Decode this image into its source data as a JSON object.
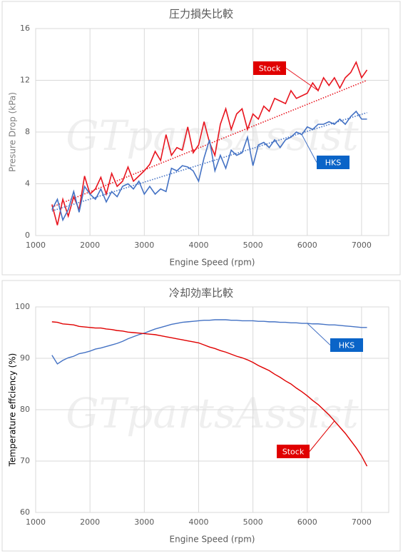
{
  "chart_data": [
    {
      "type": "line",
      "title": "圧力損失比較",
      "x_label": "Engine Speed (rpm)",
      "y_label": "Presure Drop (kPa)",
      "watermark": "GTpartsAssist",
      "xlim": [
        1000,
        7500
      ],
      "xticks": [
        1000,
        2000,
        3000,
        4000,
        5000,
        6000,
        7000
      ],
      "ylim": [
        0,
        16
      ],
      "yticks": [
        0,
        4,
        8,
        12,
        16
      ],
      "grid": true,
      "x": [
        1300,
        1400,
        1500,
        1600,
        1700,
        1800,
        1900,
        2000,
        2100,
        2200,
        2300,
        2400,
        2500,
        2600,
        2700,
        2800,
        2900,
        3000,
        3100,
        3200,
        3300,
        3400,
        3500,
        3600,
        3700,
        3800,
        3900,
        4000,
        4100,
        4200,
        4300,
        4400,
        4500,
        4600,
        4700,
        4800,
        4900,
        5000,
        5100,
        5200,
        5300,
        5400,
        5500,
        5600,
        5700,
        5800,
        5900,
        6000,
        6100,
        6200,
        6300,
        6400,
        6500,
        6600,
        6700,
        6800,
        6900,
        7000,
        7100
      ],
      "series": [
        {
          "name": "Stock",
          "color": "#e8141e",
          "trend": [
            2.2,
            12.0
          ],
          "values": [
            2.4,
            0.8,
            2.8,
            1.5,
            3.0,
            2.0,
            4.6,
            3.2,
            3.6,
            4.5,
            3.2,
            4.8,
            3.8,
            4.2,
            5.3,
            4.2,
            4.6,
            5.0,
            5.5,
            6.5,
            5.8,
            7.8,
            6.2,
            6.8,
            6.6,
            8.4,
            6.4,
            7.0,
            8.8,
            7.2,
            6.2,
            8.6,
            9.8,
            8.2,
            9.4,
            9.8,
            8.2,
            9.4,
            9.0,
            10.0,
            9.6,
            10.6,
            10.4,
            10.2,
            11.2,
            10.6,
            10.8,
            11.0,
            11.8,
            11.2,
            12.2,
            11.6,
            12.2,
            11.4,
            12.2,
            12.6,
            13.4,
            12.2,
            12.8
          ]
        },
        {
          "name": "HKS",
          "color": "#4472c4",
          "trend": [
            1.9,
            9.5
          ],
          "values": [
            2.0,
            2.8,
            1.2,
            2.0,
            3.4,
            1.8,
            3.8,
            3.2,
            2.8,
            3.6,
            2.6,
            3.4,
            3.0,
            3.8,
            4.0,
            3.6,
            4.2,
            3.2,
            3.8,
            3.2,
            3.6,
            3.4,
            5.2,
            5.0,
            5.4,
            5.3,
            5.0,
            4.2,
            6.0,
            7.4,
            5.0,
            6.2,
            5.2,
            6.6,
            6.2,
            6.4,
            7.6,
            5.4,
            7.0,
            7.2,
            6.8,
            7.4,
            6.8,
            7.4,
            7.6,
            8.0,
            7.8,
            8.4,
            8.2,
            8.6,
            8.6,
            8.8,
            8.6,
            9.0,
            8.6,
            9.2,
            9.6,
            9.0,
            9.0
          ]
        }
      ]
    },
    {
      "type": "line",
      "title": "冷却効率比較",
      "x_label": "Engine Speed (rpm)",
      "y_label": "Temperature effciency (%)",
      "watermark": "GTpartsAssist",
      "xlim": [
        1000,
        7500
      ],
      "xticks": [
        1000,
        2000,
        3000,
        4000,
        5000,
        6000,
        7000
      ],
      "ylim": [
        60,
        100
      ],
      "yticks": [
        60,
        70,
        80,
        90,
        100
      ],
      "grid": true,
      "x": [
        1300,
        1400,
        1500,
        1600,
        1700,
        1800,
        1900,
        2000,
        2100,
        2200,
        2300,
        2400,
        2500,
        2600,
        2700,
        2800,
        2900,
        3000,
        3100,
        3200,
        3300,
        3400,
        3500,
        3600,
        3700,
        3800,
        3900,
        4000,
        4100,
        4200,
        4300,
        4400,
        4500,
        4600,
        4700,
        4800,
        4900,
        5000,
        5100,
        5200,
        5300,
        5400,
        5500,
        5600,
        5700,
        5800,
        5900,
        6000,
        6100,
        6200,
        6300,
        6400,
        6500,
        6600,
        6700,
        6800,
        6900,
        7000,
        7100
      ],
      "series": [
        {
          "name": "HKS",
          "color": "#4472c4",
          "values": [
            90.6,
            88.9,
            89.6,
            90.1,
            90.4,
            90.9,
            91.1,
            91.4,
            91.8,
            92.0,
            92.3,
            92.6,
            92.9,
            93.3,
            93.8,
            94.2,
            94.6,
            94.9,
            95.3,
            95.7,
            96.0,
            96.3,
            96.6,
            96.8,
            97.0,
            97.1,
            97.2,
            97.3,
            97.4,
            97.4,
            97.5,
            97.5,
            97.5,
            97.4,
            97.4,
            97.3,
            97.3,
            97.3,
            97.2,
            97.2,
            97.1,
            97.1,
            97.0,
            97.0,
            96.9,
            96.9,
            96.8,
            96.8,
            96.7,
            96.7,
            96.6,
            96.5,
            96.5,
            96.4,
            96.3,
            96.2,
            96.1,
            96.0,
            96.0
          ]
        },
        {
          "name": "Stock",
          "color": "#e00000",
          "values": [
            97.1,
            97.0,
            96.7,
            96.6,
            96.5,
            96.2,
            96.1,
            96.0,
            95.9,
            95.9,
            95.7,
            95.6,
            95.4,
            95.3,
            95.1,
            95.0,
            94.9,
            94.8,
            94.7,
            94.6,
            94.4,
            94.2,
            94.0,
            93.8,
            93.6,
            93.4,
            93.2,
            93.0,
            92.6,
            92.2,
            91.9,
            91.5,
            91.2,
            90.8,
            90.4,
            90.1,
            89.7,
            89.2,
            88.6,
            88.1,
            87.6,
            86.9,
            86.3,
            85.6,
            85.0,
            84.2,
            83.5,
            82.7,
            81.8,
            81.0,
            80.0,
            79.0,
            77.8,
            76.6,
            75.4,
            74.0,
            72.6,
            71.0,
            69.0
          ]
        }
      ]
    }
  ]
}
